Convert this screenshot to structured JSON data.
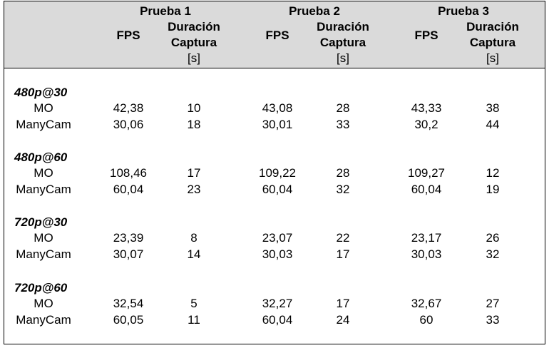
{
  "header": {
    "tests": [
      {
        "title": "Prueba 1",
        "fps": "FPS",
        "dur1": "Duración",
        "dur2": "Captura",
        "unit": "[s]"
      },
      {
        "title": "Prueba 2",
        "fps": "FPS",
        "dur1": "Duración",
        "dur2": "Captura",
        "unit": "[s]"
      },
      {
        "title": "Prueba 3",
        "fps": "FPS",
        "dur1": "Duración",
        "dur2": "Captura",
        "unit": "[s]"
      }
    ]
  },
  "groups": [
    {
      "name": "480p@30",
      "rows": [
        {
          "label": "MO",
          "values": [
            "42,38",
            "10",
            "43,08",
            "28",
            "43,33",
            "38"
          ]
        },
        {
          "label": "ManyCam",
          "values": [
            "30,06",
            "18",
            "30,01",
            "33",
            "30,2",
            "44"
          ]
        }
      ]
    },
    {
      "name": "480p@60",
      "rows": [
        {
          "label": "MO",
          "values": [
            "108,46",
            "17",
            "109,22",
            "28",
            "109,27",
            "12"
          ]
        },
        {
          "label": "ManyCam",
          "values": [
            "60,04",
            "23",
            "60,04",
            "32",
            "60,04",
            "19"
          ]
        }
      ]
    },
    {
      "name": "720p@30",
      "rows": [
        {
          "label": "MO",
          "values": [
            "23,39",
            "8",
            "23,07",
            "22",
            "23,17",
            "26"
          ]
        },
        {
          "label": "ManyCam",
          "values": [
            "30,07",
            "14",
            "30,03",
            "17",
            "30,03",
            "32"
          ]
        }
      ]
    },
    {
      "name": "720p@60",
      "rows": [
        {
          "label": "MO",
          "values": [
            "32,54",
            "5",
            "32,27",
            "17",
            "32,67",
            "27"
          ]
        },
        {
          "label": "ManyCam",
          "values": [
            "60,05",
            "11",
            "60,04",
            "24",
            "60",
            "33"
          ]
        }
      ]
    }
  ]
}
